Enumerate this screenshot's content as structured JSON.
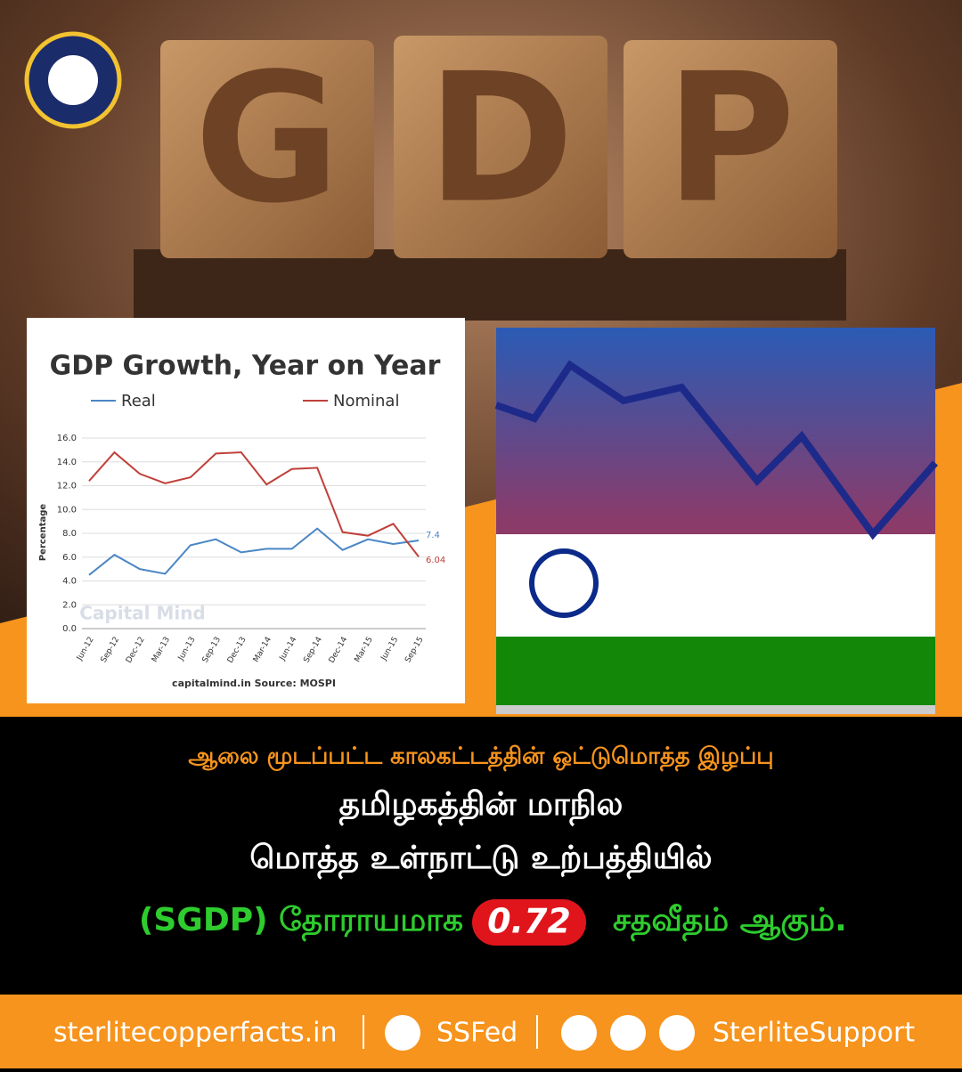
{
  "header": {
    "blocks": [
      "G",
      "D",
      "P"
    ]
  },
  "chart_data": {
    "type": "line",
    "title": "GDP Growth, Year on Year",
    "y_label": "Percentage",
    "source": "capitalmind.in Source: MOSPI",
    "watermark": "Capital Mind",
    "categories": [
      "Jun-12",
      "Sep-12",
      "Dec-12",
      "Mar-13",
      "Jun-13",
      "Sep-13",
      "Dec-13",
      "Mar-14",
      "Jun-14",
      "Sep-14",
      "Dec-14",
      "Mar-15",
      "Jun-15",
      "Sep-15"
    ],
    "series": [
      {
        "name": "Real",
        "color": "#4a86c5",
        "values": [
          4.5,
          6.2,
          5.0,
          4.6,
          7.0,
          7.5,
          6.4,
          6.7,
          6.7,
          8.4,
          6.6,
          7.5,
          7.1,
          7.4
        ]
      },
      {
        "name": "Nominal",
        "color": "#c0403a",
        "values": [
          12.4,
          14.8,
          13.0,
          12.2,
          12.7,
          14.7,
          14.8,
          12.1,
          13.4,
          13.5,
          8.1,
          7.8,
          8.8,
          6.04
        ]
      }
    ],
    "ylim": [
      0,
      16
    ],
    "yticks": [
      {
        "value": 0,
        "label": "0.0"
      },
      {
        "value": 2,
        "label": "2.0"
      },
      {
        "value": 4,
        "label": "4.0"
      },
      {
        "value": 6,
        "label": "6.0"
      },
      {
        "value": 8,
        "label": "8.0"
      },
      {
        "value": 10,
        "label": "10.0"
      },
      {
        "value": 12,
        "label": "12.0"
      },
      {
        "value": 14,
        "label": "14.0"
      },
      {
        "value": 16,
        "label": "16.0"
      }
    ],
    "grid": true
  },
  "message": {
    "line1": "ஆலை மூடப்பட்ட காலகட்டத்தின் ஒட்டுமொத்த இழப்பு",
    "line2": "தமிழகத்தின் மாநில",
    "line3": "மொத்த உள்நாட்டு உற்பத்தியில்",
    "line4_start": "(SGDP) தோராயமாக",
    "highlight": "0.72",
    "line4_end": "சதவீதம் ஆகும்."
  },
  "footer": {
    "website": "sterlitecopperfacts.in",
    "facebook": "SSFed",
    "social": "SterliteSupport"
  }
}
